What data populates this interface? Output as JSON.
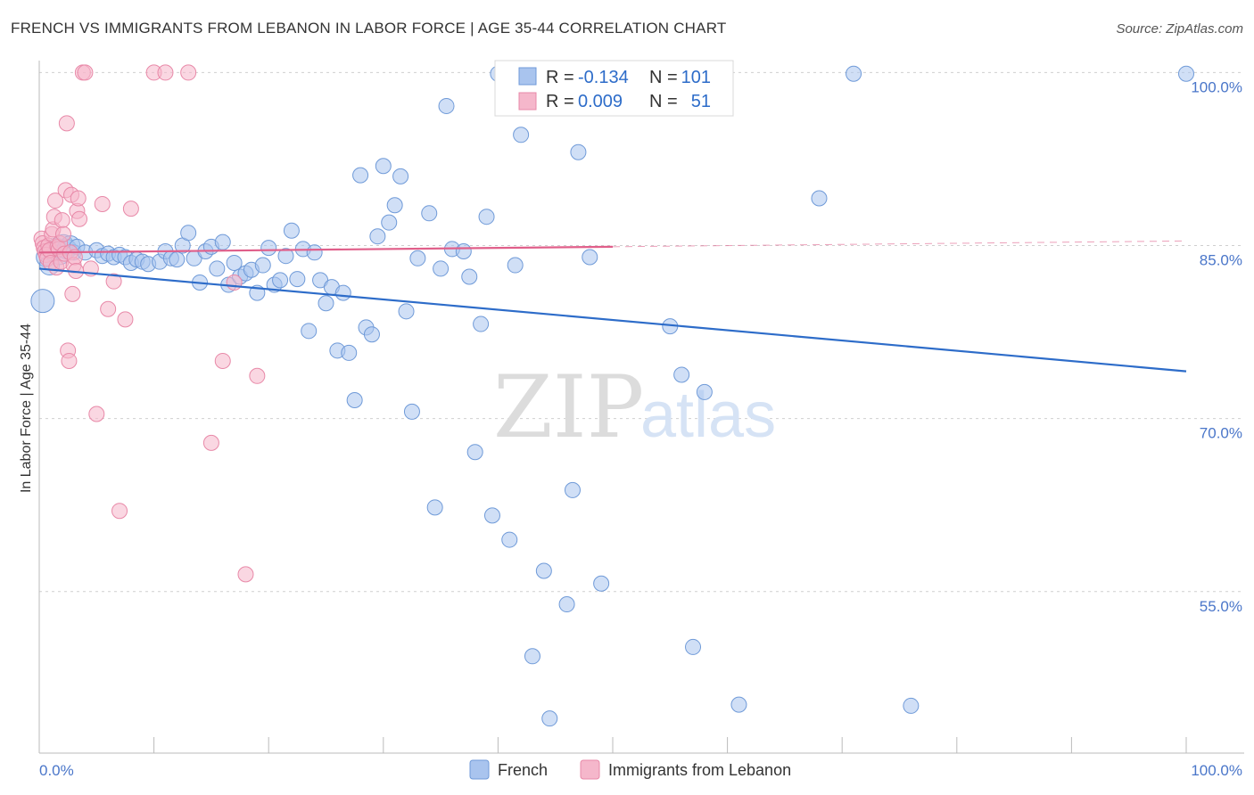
{
  "header": {
    "title": "FRENCH VS IMMIGRANTS FROM LEBANON IN LABOR FORCE | AGE 35-44 CORRELATION CHART",
    "source": "Source: ZipAtlas.com"
  },
  "watermark": {
    "zip": "ZIP",
    "atlas": "atlas"
  },
  "legend_top": {
    "rows": [
      {
        "r_label": "R =",
        "r_value": "-0.134",
        "n_label": "N =",
        "n_value": "101",
        "color": "#a9c4ee"
      },
      {
        "r_label": "R =",
        "r_value": "0.009",
        "n_label": "N =",
        "n_value": "51",
        "color": "#f5b7cb"
      }
    ]
  },
  "chart_data": {
    "type": "scatter",
    "title": "FRENCH VS IMMIGRANTS FROM LEBANON IN LABOR FORCE | AGE 35-44 CORRELATION CHART",
    "xlabel": "",
    "ylabel": "In Labor Force | Age 35-44",
    "xlim": [
      0,
      100
    ],
    "ylim": [
      41,
      101.5
    ],
    "x_tick_labels": [
      "0.0%",
      "100.0%"
    ],
    "y_ticks": [
      {
        "value": 100,
        "label": "100.0%"
      },
      {
        "value": 85,
        "label": "85.0%"
      },
      {
        "value": 70,
        "label": "70.0%"
      },
      {
        "value": 55,
        "label": "55.0%"
      }
    ],
    "grid": "horizontal-dashed",
    "legend_position": "bottom-center",
    "series": [
      {
        "name": "French",
        "color": "#a9c4ee",
        "stroke": "#6f9ad8",
        "trend": {
          "x": [
            0,
            100
          ],
          "y": [
            83.0,
            74.1
          ],
          "color": "#2d6cc9"
        },
        "points": [
          [
            0.3,
            80.2
          ],
          [
            0.6,
            84.0
          ],
          [
            0.9,
            83.3
          ],
          [
            1.2,
            84.5
          ],
          [
            1.5,
            84.8
          ],
          [
            1.8,
            84.2
          ],
          [
            2.1,
            85.1
          ],
          [
            2.4,
            84.7
          ],
          [
            2.7,
            85.0
          ],
          [
            3.0,
            84.4
          ],
          [
            3.3,
            84.9
          ],
          [
            4.0,
            84.4
          ],
          [
            5.0,
            84.6
          ],
          [
            5.5,
            84.1
          ],
          [
            6.0,
            84.3
          ],
          [
            6.5,
            84.0
          ],
          [
            7.0,
            84.2
          ],
          [
            7.5,
            84.0
          ],
          [
            8.0,
            83.5
          ],
          [
            8.5,
            83.8
          ],
          [
            9.0,
            83.6
          ],
          [
            9.5,
            83.4
          ],
          [
            10.5,
            83.6
          ],
          [
            11.0,
            84.5
          ],
          [
            11.5,
            83.9
          ],
          [
            12.0,
            83.8
          ],
          [
            12.5,
            85.0
          ],
          [
            13.0,
            86.1
          ],
          [
            13.5,
            83.9
          ],
          [
            14.0,
            81.8
          ],
          [
            14.5,
            84.5
          ],
          [
            15.0,
            84.9
          ],
          [
            15.5,
            83.0
          ],
          [
            16.0,
            85.3
          ],
          [
            16.5,
            81.6
          ],
          [
            17.0,
            83.5
          ],
          [
            17.5,
            82.3
          ],
          [
            18.0,
            82.6
          ],
          [
            18.5,
            82.9
          ],
          [
            19.0,
            80.9
          ],
          [
            19.5,
            83.3
          ],
          [
            20.0,
            84.8
          ],
          [
            20.5,
            81.6
          ],
          [
            21.0,
            82.0
          ],
          [
            21.5,
            84.1
          ],
          [
            22.0,
            86.3
          ],
          [
            22.5,
            82.1
          ],
          [
            23.0,
            84.7
          ],
          [
            23.5,
            77.6
          ],
          [
            24.0,
            84.4
          ],
          [
            24.5,
            82.0
          ],
          [
            25.0,
            80.0
          ],
          [
            25.5,
            81.4
          ],
          [
            26.0,
            75.9
          ],
          [
            26.5,
            80.9
          ],
          [
            27.0,
            75.7
          ],
          [
            27.5,
            71.6
          ],
          [
            28.0,
            91.1
          ],
          [
            28.5,
            77.9
          ],
          [
            29.0,
            77.3
          ],
          [
            29.5,
            85.8
          ],
          [
            30.0,
            91.9
          ],
          [
            30.5,
            87.0
          ],
          [
            31.0,
            88.5
          ],
          [
            31.5,
            91.0
          ],
          [
            32.0,
            79.3
          ],
          [
            32.5,
            70.6
          ],
          [
            33.0,
            83.9
          ],
          [
            34.0,
            87.8
          ],
          [
            34.5,
            62.3
          ],
          [
            35.0,
            83.0
          ],
          [
            35.5,
            97.1
          ],
          [
            36.0,
            84.7
          ],
          [
            37.0,
            84.5
          ],
          [
            37.5,
            82.3
          ],
          [
            38.0,
            67.1
          ],
          [
            38.5,
            78.2
          ],
          [
            39.0,
            87.5
          ],
          [
            39.5,
            61.6
          ],
          [
            40.0,
            99.9
          ],
          [
            41.0,
            59.5
          ],
          [
            41.5,
            83.3
          ],
          [
            42.0,
            94.6
          ],
          [
            43.0,
            49.4
          ],
          [
            44.0,
            56.8
          ],
          [
            44.5,
            44.0
          ],
          [
            45.0,
            99.9
          ],
          [
            46.0,
            53.9
          ],
          [
            46.5,
            63.8
          ],
          [
            47.0,
            93.1
          ],
          [
            48.0,
            84.0
          ],
          [
            49.0,
            55.7
          ],
          [
            50.0,
            99.9
          ],
          [
            55.0,
            78.0
          ],
          [
            56.0,
            73.8
          ],
          [
            57.0,
            50.2
          ],
          [
            58.0,
            72.3
          ],
          [
            61.0,
            45.2
          ],
          [
            68.0,
            89.1
          ],
          [
            71.0,
            99.9
          ],
          [
            76.0,
            45.1
          ],
          [
            100.0,
            99.9
          ]
        ]
      },
      {
        "name": "Immigrants from Lebanon",
        "color": "#f5b7cb",
        "stroke": "#e889a8",
        "trend": {
          "x": [
            0,
            50,
            100
          ],
          "y": [
            84.4,
            84.9,
            85.4
          ],
          "color": "#e05f8a"
        },
        "points": [
          [
            0.2,
            85.6
          ],
          [
            0.3,
            85.2
          ],
          [
            0.4,
            84.8
          ],
          [
            0.5,
            84.5
          ],
          [
            0.6,
            84.2
          ],
          [
            0.7,
            83.9
          ],
          [
            0.8,
            85.0
          ],
          [
            0.9,
            84.6
          ],
          [
            1.0,
            83.5
          ],
          [
            1.1,
            86.0
          ],
          [
            1.2,
            86.4
          ],
          [
            1.3,
            87.5
          ],
          [
            1.4,
            88.9
          ],
          [
            1.5,
            83.1
          ],
          [
            1.6,
            84.9
          ],
          [
            1.7,
            84.7
          ],
          [
            1.8,
            85.2
          ],
          [
            1.9,
            83.6
          ],
          [
            2.0,
            87.2
          ],
          [
            2.1,
            86.0
          ],
          [
            2.2,
            84.3
          ],
          [
            2.3,
            89.8
          ],
          [
            2.4,
            95.6
          ],
          [
            2.5,
            75.9
          ],
          [
            2.6,
            75.0
          ],
          [
            2.7,
            84.4
          ],
          [
            2.8,
            89.4
          ],
          [
            2.9,
            80.8
          ],
          [
            3.0,
            83.3
          ],
          [
            3.1,
            84.0
          ],
          [
            3.2,
            82.8
          ],
          [
            3.3,
            88.0
          ],
          [
            3.4,
            89.1
          ],
          [
            3.5,
            87.3
          ],
          [
            3.8,
            100.0
          ],
          [
            4.0,
            100.0
          ],
          [
            4.5,
            83.0
          ],
          [
            5.0,
            70.4
          ],
          [
            5.5,
            88.6
          ],
          [
            6.0,
            79.5
          ],
          [
            6.5,
            81.9
          ],
          [
            7.0,
            62.0
          ],
          [
            7.5,
            78.6
          ],
          [
            8.0,
            88.2
          ],
          [
            10.0,
            100.0
          ],
          [
            11.0,
            100.0
          ],
          [
            13.0,
            100.0
          ],
          [
            15.0,
            67.9
          ],
          [
            16.0,
            75.0
          ],
          [
            17.0,
            81.8
          ],
          [
            18.0,
            56.5
          ],
          [
            19.0,
            73.7
          ]
        ]
      }
    ]
  },
  "legend_bottom": {
    "items": [
      {
        "label": "French",
        "color": "#a9c4ee"
      },
      {
        "label": "Immigrants from Lebanon",
        "color": "#f5b7cb"
      }
    ]
  }
}
